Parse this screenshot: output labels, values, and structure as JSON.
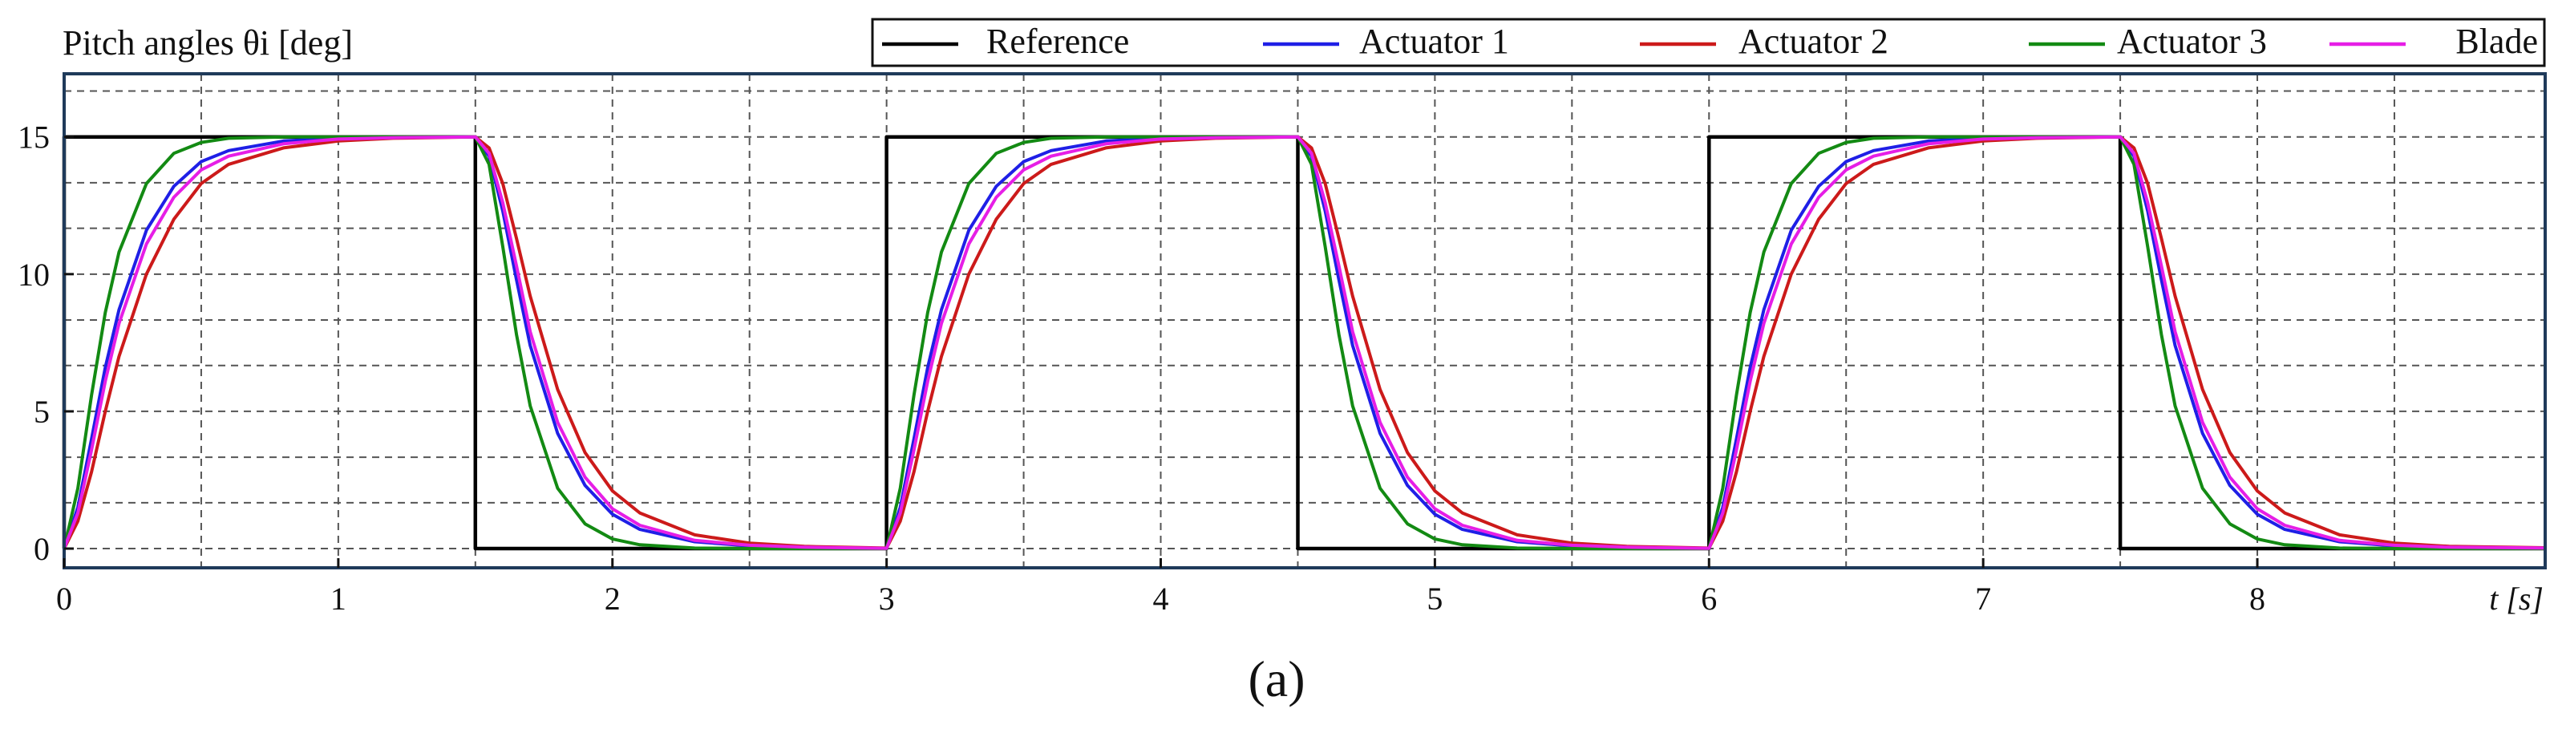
{
  "chart_data": {
    "type": "line",
    "title": "Pitch angles θi [deg]",
    "xlabel": "t [s]",
    "ylabel": "",
    "panel_label": "(a)",
    "xlim": [
      0,
      9.05
    ],
    "ylim": [
      -0.7,
      17.3
    ],
    "xticks": [
      0,
      1,
      2,
      3,
      4,
      5,
      6,
      7,
      8
    ],
    "xtick_labels": [
      "0",
      "1",
      "2",
      "3",
      "4",
      "5",
      "6",
      "7",
      "8"
    ],
    "yticks": [
      0,
      5,
      10,
      15
    ],
    "ytick_labels": [
      "0",
      "5",
      "10",
      "15"
    ],
    "grid_x": [
      0.5,
      1,
      1.5,
      2,
      2.5,
      3,
      3.5,
      4,
      4.5,
      5,
      5.5,
      6,
      6.5,
      7,
      7.5,
      8,
      8.5
    ],
    "grid_y": [
      0,
      1.67,
      3.33,
      5,
      6.67,
      8.33,
      10,
      11.67,
      13.33,
      15,
      16.67
    ],
    "grid": true,
    "legend_position": "top",
    "series": [
      {
        "name": "Reference",
        "color": "#000000",
        "x": [
          0,
          0,
          1.5,
          1.5,
          3,
          3,
          4.5,
          4.5,
          6,
          6,
          7.5,
          7.5,
          9.05
        ],
        "y": [
          0,
          15,
          15,
          0,
          0,
          15,
          15,
          0,
          0,
          15,
          15,
          0,
          0
        ]
      },
      {
        "name": "Actuator 1",
        "color": "#1f1fe6",
        "x": [
          0,
          0.05,
          0.1,
          0.15,
          0.2,
          0.3,
          0.4,
          0.5,
          0.6,
          0.8,
          1.0,
          1.2,
          1.5,
          1.55,
          1.6,
          1.65,
          1.7,
          1.8,
          1.9,
          2.0,
          2.1,
          2.3,
          2.5,
          2.7,
          3.0,
          3.05,
          3.1,
          3.15,
          3.2,
          3.3,
          3.4,
          3.5,
          3.6,
          3.8,
          4.0,
          4.2,
          4.5,
          4.55,
          4.6,
          4.65,
          4.7,
          4.8,
          4.9,
          5.0,
          5.1,
          5.3,
          5.5,
          5.7,
          6.0,
          6.05,
          6.1,
          6.15,
          6.2,
          6.3,
          6.4,
          6.5,
          6.6,
          6.8,
          7.0,
          7.2,
          7.5,
          7.55,
          7.6,
          7.65,
          7.7,
          7.8,
          7.9,
          8.0,
          8.1,
          8.3,
          8.5,
          8.7,
          9.05
        ],
        "y": [
          0,
          1.5,
          4.0,
          6.6,
          8.7,
          11.6,
          13.2,
          14.1,
          14.5,
          14.85,
          14.95,
          14.98,
          15,
          14.3,
          12.3,
          9.8,
          7.4,
          4.2,
          2.3,
          1.25,
          0.7,
          0.25,
          0.1,
          0.04,
          0,
          1.5,
          4.0,
          6.6,
          8.7,
          11.6,
          13.2,
          14.1,
          14.5,
          14.85,
          14.95,
          14.98,
          15,
          14.3,
          12.3,
          9.8,
          7.4,
          4.2,
          2.3,
          1.25,
          0.7,
          0.25,
          0.1,
          0.04,
          0,
          1.5,
          4.0,
          6.6,
          8.7,
          11.6,
          13.2,
          14.1,
          14.5,
          14.85,
          14.95,
          14.98,
          15,
          14.3,
          12.3,
          9.8,
          7.4,
          4.2,
          2.3,
          1.25,
          0.7,
          0.25,
          0.1,
          0.04,
          0.02
        ]
      },
      {
        "name": "Actuator 2",
        "color": "#cc1a1a",
        "x": [
          0,
          0.05,
          0.1,
          0.15,
          0.2,
          0.3,
          0.4,
          0.5,
          0.6,
          0.8,
          1.0,
          1.2,
          1.5,
          1.55,
          1.6,
          1.65,
          1.7,
          1.8,
          1.9,
          2.0,
          2.1,
          2.3,
          2.5,
          2.7,
          3.0,
          3.05,
          3.1,
          3.15,
          3.2,
          3.3,
          3.4,
          3.5,
          3.6,
          3.8,
          4.0,
          4.2,
          4.5,
          4.55,
          4.6,
          4.65,
          4.7,
          4.8,
          4.9,
          5.0,
          5.1,
          5.3,
          5.5,
          5.7,
          6.0,
          6.05,
          6.1,
          6.15,
          6.2,
          6.3,
          6.4,
          6.5,
          6.6,
          6.8,
          7.0,
          7.2,
          7.5,
          7.55,
          7.6,
          7.65,
          7.7,
          7.8,
          7.9,
          8.0,
          8.1,
          8.3,
          8.5,
          8.7,
          9.05
        ],
        "y": [
          0,
          1.0,
          2.8,
          5.0,
          7.0,
          10.0,
          12.0,
          13.3,
          14.0,
          14.6,
          14.85,
          14.95,
          15,
          14.6,
          13.3,
          11.3,
          9.2,
          5.8,
          3.5,
          2.1,
          1.3,
          0.5,
          0.2,
          0.08,
          0.02,
          1.0,
          2.8,
          5.0,
          7.0,
          10.0,
          12.0,
          13.3,
          14.0,
          14.6,
          14.85,
          14.95,
          15,
          14.6,
          13.3,
          11.3,
          9.2,
          5.8,
          3.5,
          2.1,
          1.3,
          0.5,
          0.2,
          0.08,
          0.02,
          1.0,
          2.8,
          5.0,
          7.0,
          10.0,
          12.0,
          13.3,
          14.0,
          14.6,
          14.85,
          14.95,
          15,
          14.6,
          13.3,
          11.3,
          9.2,
          5.8,
          3.5,
          2.1,
          1.3,
          0.5,
          0.2,
          0.08,
          0.03
        ]
      },
      {
        "name": "Actuator 3",
        "color": "#138a13",
        "x": [
          0,
          0.05,
          0.1,
          0.15,
          0.2,
          0.3,
          0.4,
          0.5,
          0.6,
          0.8,
          1.0,
          1.2,
          1.5,
          1.55,
          1.6,
          1.65,
          1.7,
          1.8,
          1.9,
          2.0,
          2.1,
          2.3,
          2.5,
          2.7,
          3.0,
          3.05,
          3.1,
          3.15,
          3.2,
          3.3,
          3.4,
          3.5,
          3.6,
          3.8,
          4.0,
          4.2,
          4.5,
          4.55,
          4.6,
          4.65,
          4.7,
          4.8,
          4.9,
          5.0,
          5.1,
          5.3,
          5.5,
          5.7,
          6.0,
          6.05,
          6.1,
          6.15,
          6.2,
          6.3,
          6.4,
          6.5,
          6.6,
          6.8,
          7.0,
          7.2,
          7.5,
          7.55,
          7.6,
          7.65,
          7.7,
          7.8,
          7.9,
          8.0,
          8.1,
          8.3,
          8.5,
          8.7,
          9.05
        ],
        "y": [
          0,
          2.2,
          5.6,
          8.6,
          10.8,
          13.3,
          14.4,
          14.8,
          14.95,
          15,
          15,
          15,
          15,
          14.0,
          11.0,
          7.8,
          5.2,
          2.2,
          0.9,
          0.35,
          0.14,
          0.02,
          0,
          0,
          0,
          2.2,
          5.6,
          8.6,
          10.8,
          13.3,
          14.4,
          14.8,
          14.95,
          15,
          15,
          15,
          15,
          14.0,
          11.0,
          7.8,
          5.2,
          2.2,
          0.9,
          0.35,
          0.14,
          0.02,
          0,
          0,
          0,
          2.2,
          5.6,
          8.6,
          10.8,
          13.3,
          14.4,
          14.8,
          14.95,
          15,
          15,
          15,
          15,
          14.0,
          11.0,
          7.8,
          5.2,
          2.2,
          0.9,
          0.35,
          0.14,
          0.02,
          0,
          0,
          0
        ]
      },
      {
        "name": "Blade",
        "color": "#e61ee6",
        "x": [
          0,
          0.05,
          0.1,
          0.15,
          0.2,
          0.3,
          0.4,
          0.5,
          0.6,
          0.8,
          1.0,
          1.2,
          1.5,
          1.55,
          1.6,
          1.65,
          1.7,
          1.8,
          1.9,
          2.0,
          2.1,
          2.3,
          2.5,
          2.7,
          3.0,
          3.05,
          3.1,
          3.15,
          3.2,
          3.3,
          3.4,
          3.5,
          3.6,
          3.8,
          4.0,
          4.2,
          4.5,
          4.55,
          4.6,
          4.65,
          4.7,
          4.8,
          4.9,
          5.0,
          5.1,
          5.3,
          5.5,
          5.7,
          6.0,
          6.05,
          6.1,
          6.15,
          6.2,
          6.3,
          6.4,
          6.5,
          6.6,
          6.8,
          7.0,
          7.2,
          7.5,
          7.55,
          7.6,
          7.65,
          7.7,
          7.8,
          7.9,
          8.0,
          8.1,
          8.3,
          8.5,
          8.7,
          9.05
        ],
        "y": [
          0,
          1.3,
          3.6,
          6.1,
          8.2,
          11.1,
          12.8,
          13.8,
          14.3,
          14.75,
          14.92,
          14.97,
          15,
          14.4,
          12.6,
          10.3,
          7.9,
          4.6,
          2.6,
          1.45,
          0.85,
          0.3,
          0.12,
          0.05,
          0.01,
          1.3,
          3.6,
          6.1,
          8.2,
          11.1,
          12.8,
          13.8,
          14.3,
          14.75,
          14.92,
          14.97,
          15,
          14.4,
          12.6,
          10.3,
          7.9,
          4.6,
          2.6,
          1.45,
          0.85,
          0.3,
          0.12,
          0.05,
          0.01,
          1.3,
          3.6,
          6.1,
          8.2,
          11.1,
          12.8,
          13.8,
          14.3,
          14.75,
          14.92,
          14.97,
          15,
          14.4,
          12.6,
          10.3,
          7.9,
          4.6,
          2.6,
          1.45,
          0.85,
          0.3,
          0.12,
          0.05,
          0.02
        ]
      }
    ]
  },
  "colors": {
    "frame": "#1f3a5a",
    "grid": "#555555",
    "axis": "#111111"
  }
}
